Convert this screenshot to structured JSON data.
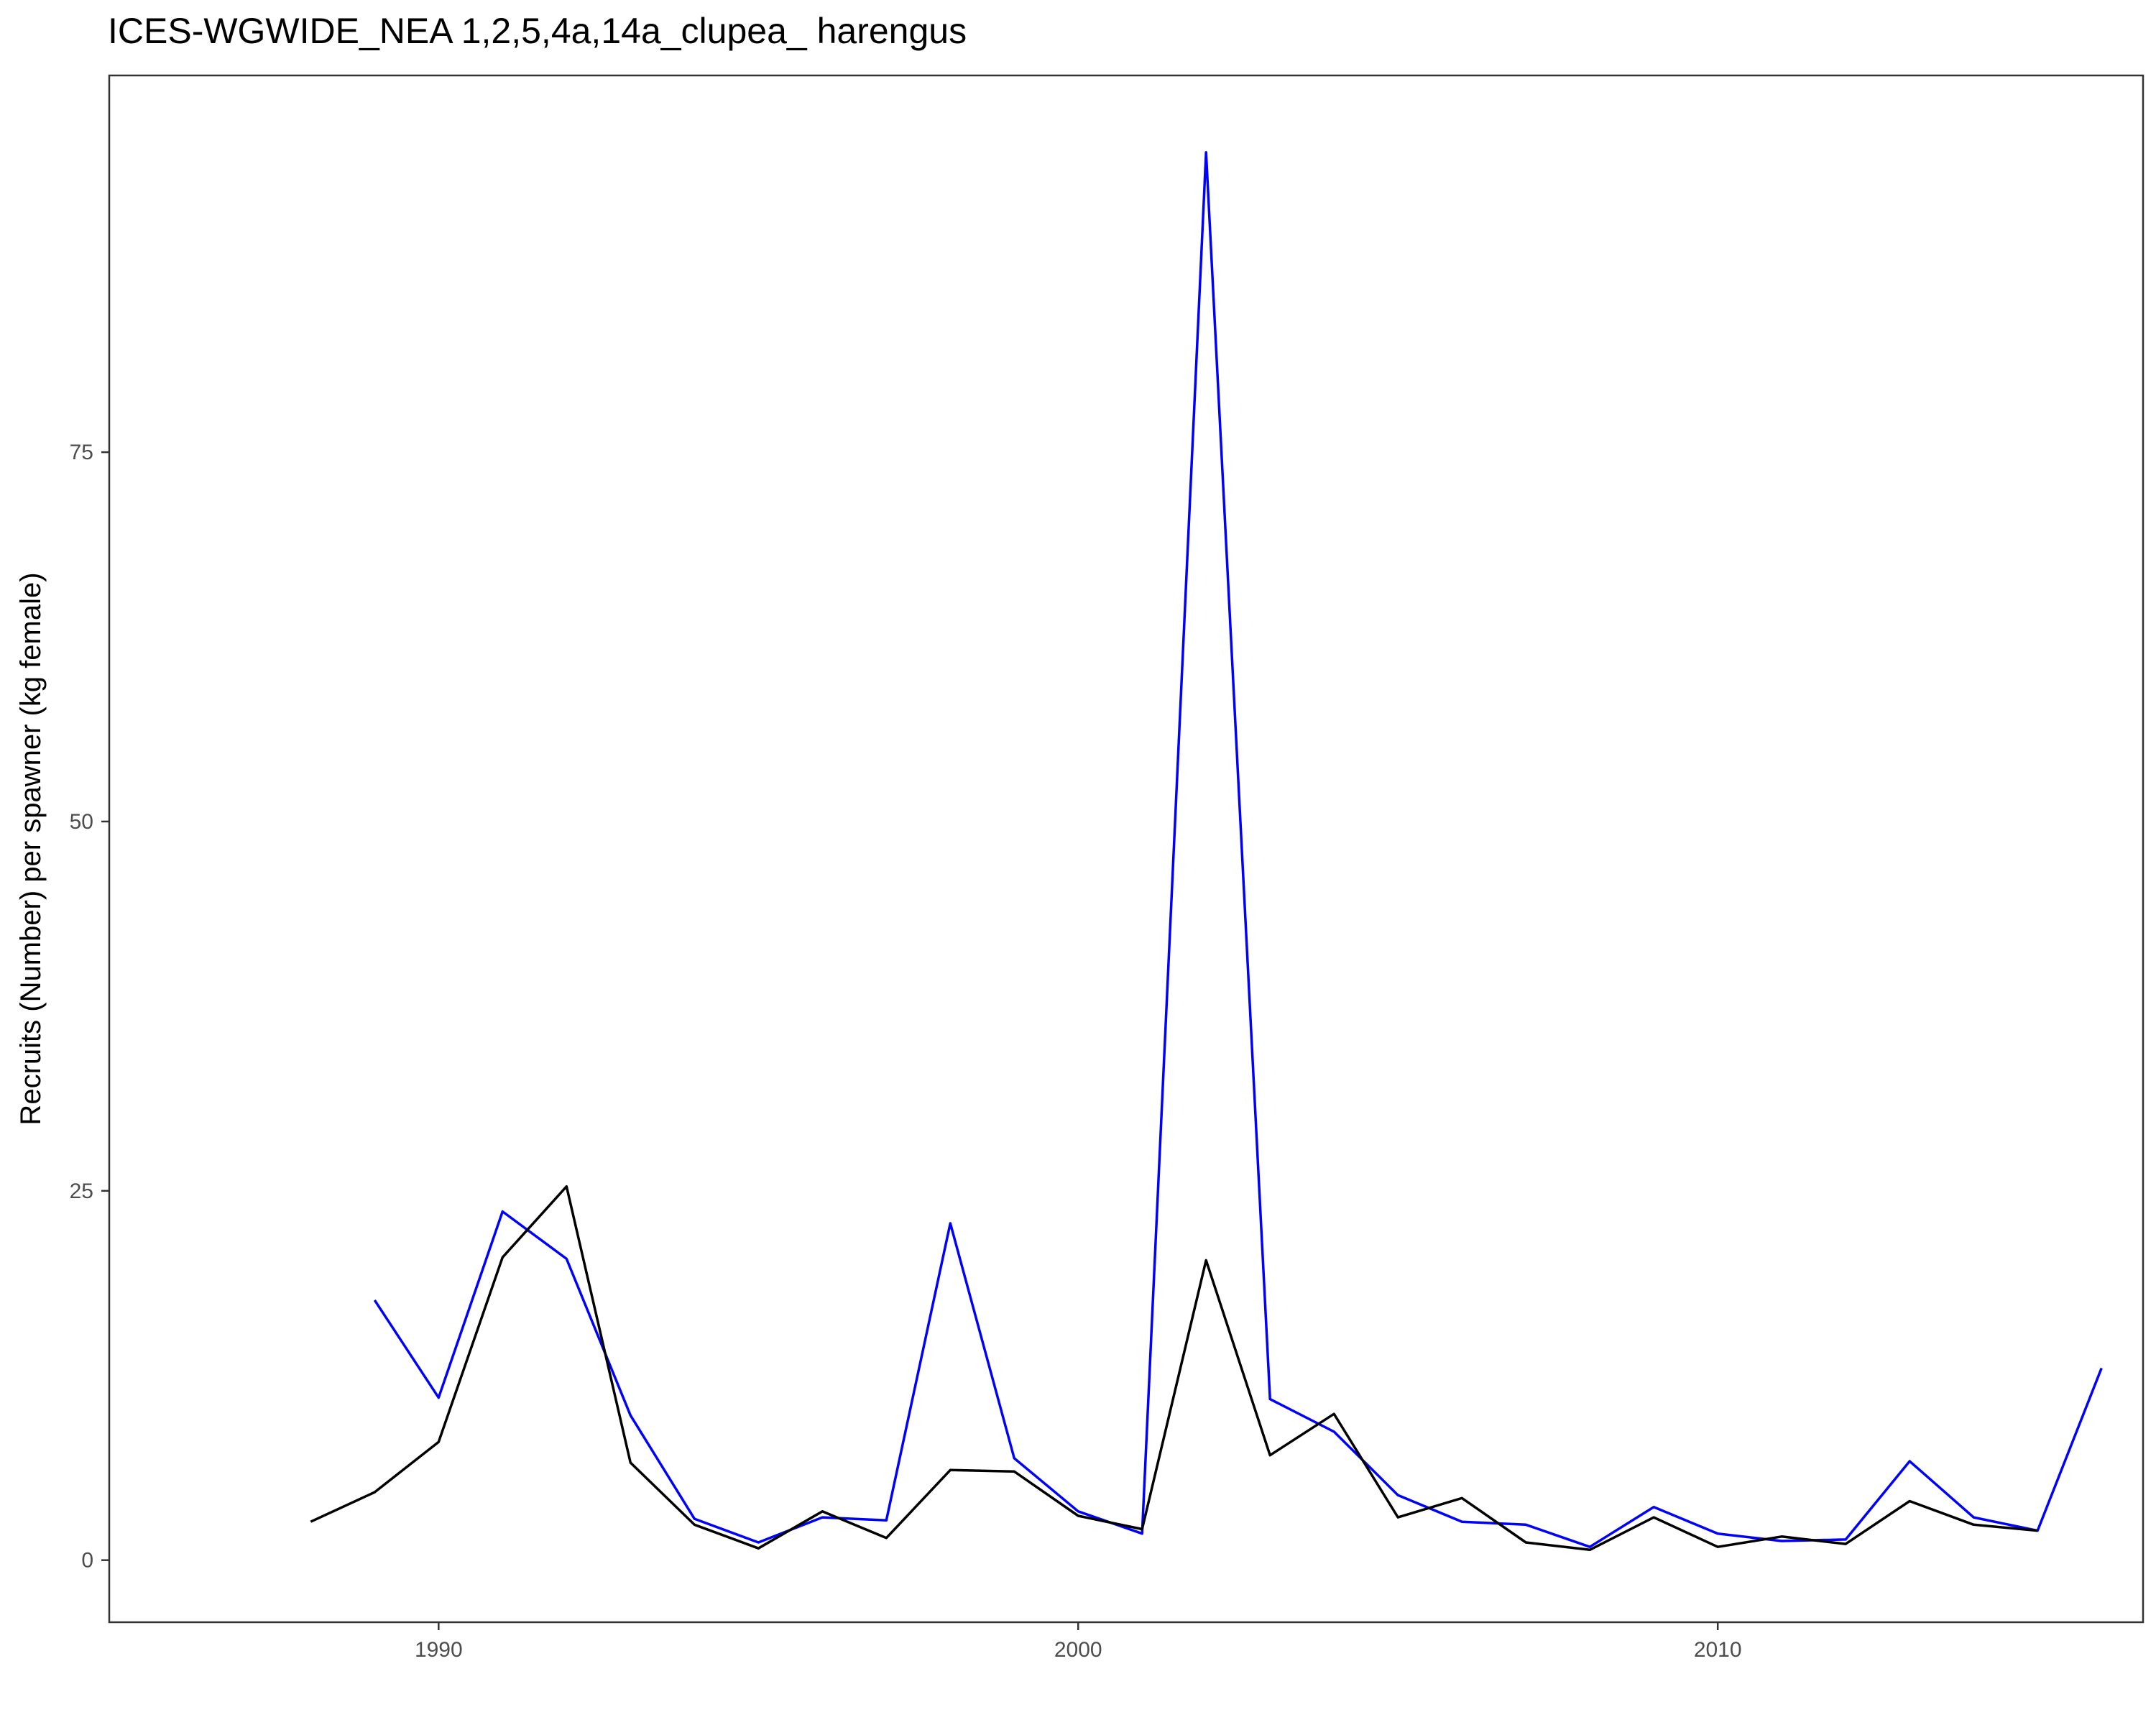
{
  "chart_data": {
    "type": "line",
    "title": "ICES-WGWIDE_NEA 1,2,5,4a,14a_clupea_ harengus",
    "xlabel": "",
    "ylabel": "Recruits (Number) per spawner (kg female)",
    "xlim": [
      1984.85,
      2016.65
    ],
    "ylim": [
      -4.2,
      100.5
    ],
    "x_ticks": [
      1990,
      2000,
      2010
    ],
    "y_ticks": [
      0,
      25,
      50,
      75
    ],
    "grid": false,
    "legend": "none",
    "series": [
      {
        "color": "#0000ff",
        "x": [
          1989,
          1990,
          1991,
          1992,
          1993,
          1994,
          1995,
          1996,
          1997,
          1998,
          1999,
          2000,
          2001,
          2002,
          2003,
          2004,
          2005,
          2006,
          2007,
          2008,
          2009,
          2010,
          2011,
          2012,
          2013,
          2014,
          2015,
          2016
        ],
        "y": [
          17.6,
          11.0,
          23.6,
          20.4,
          9.8,
          2.8,
          1.2,
          2.9,
          2.7,
          22.8,
          6.9,
          3.3,
          1.8,
          95.3,
          10.9,
          8.7,
          4.4,
          2.6,
          2.4,
          0.9,
          3.6,
          1.8,
          1.3,
          1.4,
          6.7,
          2.9,
          2.0,
          13.0
        ]
      },
      {
        "color": "#000000",
        "x": [
          1988,
          1989,
          1990,
          1991,
          1992,
          1993,
          1994,
          1995,
          1996,
          1997,
          1998,
          1999,
          2000,
          2001,
          2002,
          2003,
          2004,
          2005,
          2006,
          2007,
          2008,
          2009,
          2010,
          2011,
          2012,
          2013,
          2014,
          2015
        ],
        "y": [
          2.6,
          4.6,
          8.0,
          20.5,
          25.3,
          6.6,
          2.4,
          0.8,
          3.3,
          1.5,
          6.1,
          6.0,
          3.0,
          2.1,
          20.3,
          7.1,
          9.9,
          2.9,
          4.2,
          1.2,
          0.7,
          2.9,
          0.9,
          1.6,
          1.1,
          4.0,
          2.4,
          2.0
        ]
      }
    ]
  },
  "colors": {
    "panel_border": "#333333",
    "tick_text": "#4d4d4d",
    "tick_mark": "#333333"
  }
}
